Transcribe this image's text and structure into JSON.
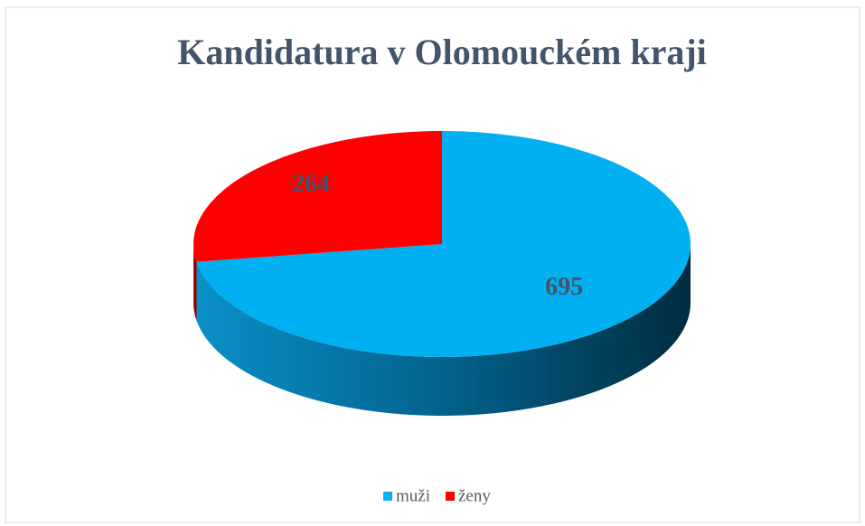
{
  "chart_data": {
    "type": "pie",
    "title": "Kandidatura v Olomouckém kraji",
    "categories": [
      "muži",
      "ženy"
    ],
    "values": [
      695,
      264
    ],
    "colors": [
      "#00b0f0",
      "#ff0000"
    ],
    "legend": "bottom"
  }
}
